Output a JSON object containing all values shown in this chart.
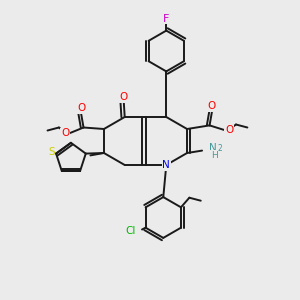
{
  "background_color": "#ebebeb",
  "bond_color": "#1a1a1a",
  "atom_colors": {
    "F": "#cc00cc",
    "O": "#ff0000",
    "N": "#0000ee",
    "S": "#cccc00",
    "Cl": "#00bb00",
    "NH": "#449999",
    "C": "#1a1a1a"
  }
}
